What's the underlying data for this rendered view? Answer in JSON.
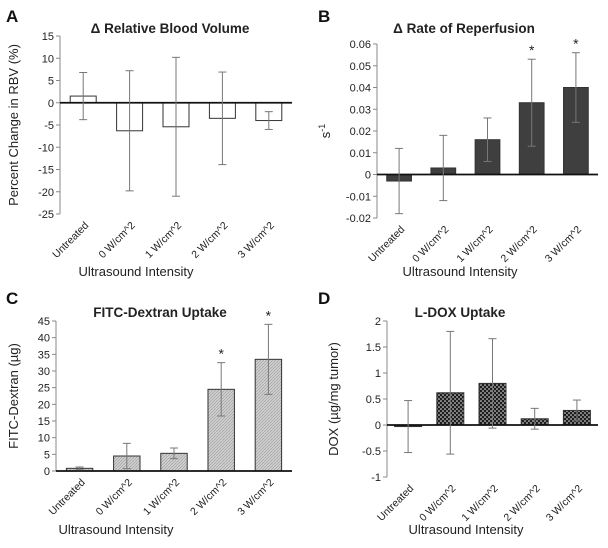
{
  "chart_data": [
    {
      "panel": "A",
      "type": "bar",
      "title": "Δ Relative Blood Volume",
      "xlabel": "Ultrasound Intensity",
      "ylabel": "Percent Change in RBV (%)",
      "ylim": [
        -25,
        15
      ],
      "yticks": [
        -25,
        -20,
        -15,
        -10,
        -5,
        0,
        5,
        10,
        15
      ],
      "categories": [
        "Untreated",
        "0 W/cm^2",
        "1 W/cm^2",
        "2 W/cm^2",
        "3 W/cm^2"
      ],
      "values": [
        1.5,
        -6.3,
        -5.4,
        -3.5,
        -4.0
      ],
      "errors": [
        5.3,
        13.5,
        15.6,
        10.4,
        2.0
      ],
      "significant": [
        false,
        false,
        false,
        false,
        false
      ],
      "fill": "#ffffff"
    },
    {
      "panel": "B",
      "type": "bar",
      "title": "Δ Rate of Reperfusion",
      "xlabel": "Ultrasound Intensity",
      "ylabel": "s",
      "ylabel_sup": "-1",
      "ylim": [
        -0.02,
        0.06
      ],
      "yticks": [
        -0.02,
        -0.01,
        0,
        0.01,
        0.02,
        0.03,
        0.04,
        0.05,
        0.06
      ],
      "tick_labels": [
        "-0.02",
        "-0.01",
        "0",
        "0.01",
        "0.02",
        "0.03",
        "0.04",
        "0.05",
        "0.06"
      ],
      "categories": [
        "Untreated",
        "0 W/cm^2",
        "1 W/cm^2",
        "2 W/cm^2",
        "3 W/cm^2"
      ],
      "values": [
        -0.003,
        0.003,
        0.016,
        0.033,
        0.04
      ],
      "errors": [
        0.015,
        0.015,
        0.01,
        0.02,
        0.016
      ],
      "significant": [
        false,
        false,
        false,
        true,
        true
      ],
      "star": "*",
      "fill": "#3f3f3f"
    },
    {
      "panel": "C",
      "type": "bar",
      "title": "FITC-Dextran Uptake",
      "xlabel": "Ultrasound Intensity",
      "ylabel": "FITC-Dextran (µg)",
      "ylim": [
        0,
        45
      ],
      "yticks": [
        0,
        5,
        10,
        15,
        20,
        25,
        30,
        35,
        40,
        45
      ],
      "categories": [
        "Untreated",
        "0 W/cm^2",
        "1 W/cm^2",
        "2 W/cm^2",
        "3 W/cm^2"
      ],
      "values": [
        0.8,
        4.5,
        5.3,
        24.5,
        33.5
      ],
      "errors": [
        0.4,
        3.8,
        1.6,
        8.0,
        10.5
      ],
      "significant": [
        false,
        false,
        false,
        true,
        true
      ],
      "star": "*",
      "fill": "#c4c4c4"
    },
    {
      "panel": "D",
      "type": "bar",
      "title": "L-DOX Uptake",
      "xlabel": "Ultrasound Intensity",
      "ylabel": "DOX (µg/mg tumor)",
      "ylim": [
        -1,
        2
      ],
      "yticks": [
        -1,
        -0.5,
        0,
        0.5,
        1,
        1.5,
        2
      ],
      "categories": [
        "Untreated",
        "0 W/cm^2",
        "1 W/cm^2",
        "2 W/cm^2",
        "3 W/cm^2"
      ],
      "values": [
        -0.03,
        0.62,
        0.8,
        0.12,
        0.28
      ],
      "errors": [
        0.5,
        1.18,
        0.86,
        0.2,
        0.2
      ],
      "significant": [
        false,
        false,
        false,
        false,
        false
      ],
      "fill": "#2a2a2a"
    }
  ]
}
